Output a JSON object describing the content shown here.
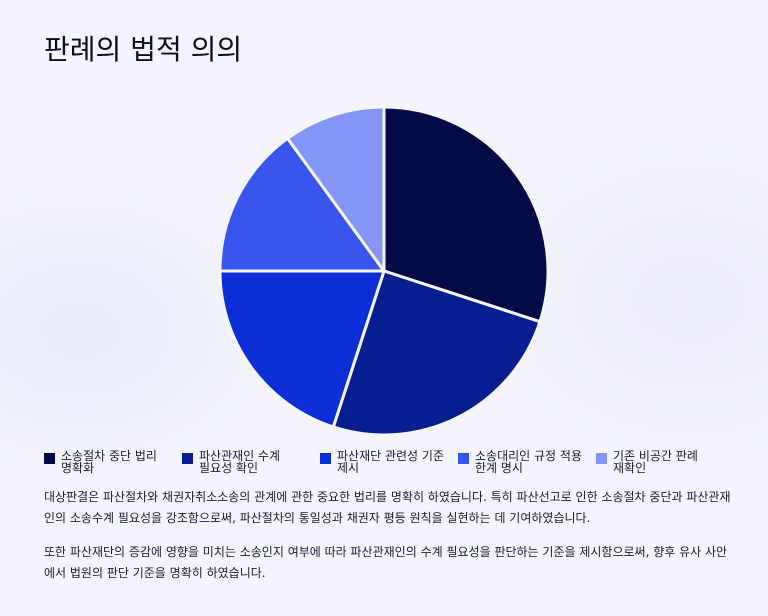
{
  "page": {
    "title": "판례의 법적 의의"
  },
  "chart_data": {
    "type": "pie",
    "title": "",
    "slices": [
      {
        "label": "소송절차 중단 법리 명확화",
        "value": 30,
        "color": "#020b45"
      },
      {
        "label": "파산관재인 수계 필요성 확인",
        "value": 25,
        "color": "#061e8f"
      },
      {
        "label": "파산재단 관련성 기준 제시",
        "value": 20,
        "color": "#0c2ed6"
      },
      {
        "label": "소송대리인 규정 적용 한계 명시",
        "value": 15,
        "color": "#3856ee"
      },
      {
        "label": "기존 비공간 판례 재확인",
        "value": 10,
        "color": "#8495f6"
      }
    ],
    "legend_position": "bottom",
    "slice_border_color": "#f4f5fc"
  },
  "paragraphs": [
    "대상판결은 파산절차와 채권자취소소송의 관계에 관한 중요한 법리를 명확히 하였습니다. 특히 파산선고로 인한 소송절차 중단과 파산관재인의 소송수계 필요성을 강조함으로써, 파산절차의 통일성과 채권자 평등 원칙을 실현하는 데 기여하였습니다.",
    "또한 파산재단의 증감에 영향을 미치는 소송인지 여부에 따라 파산관재인의 수계 필요성을 판단하는 기준을 제시함으로써, 향후 유사 사안에서 법원의 판단 기준을 명확히 하였습니다."
  ]
}
